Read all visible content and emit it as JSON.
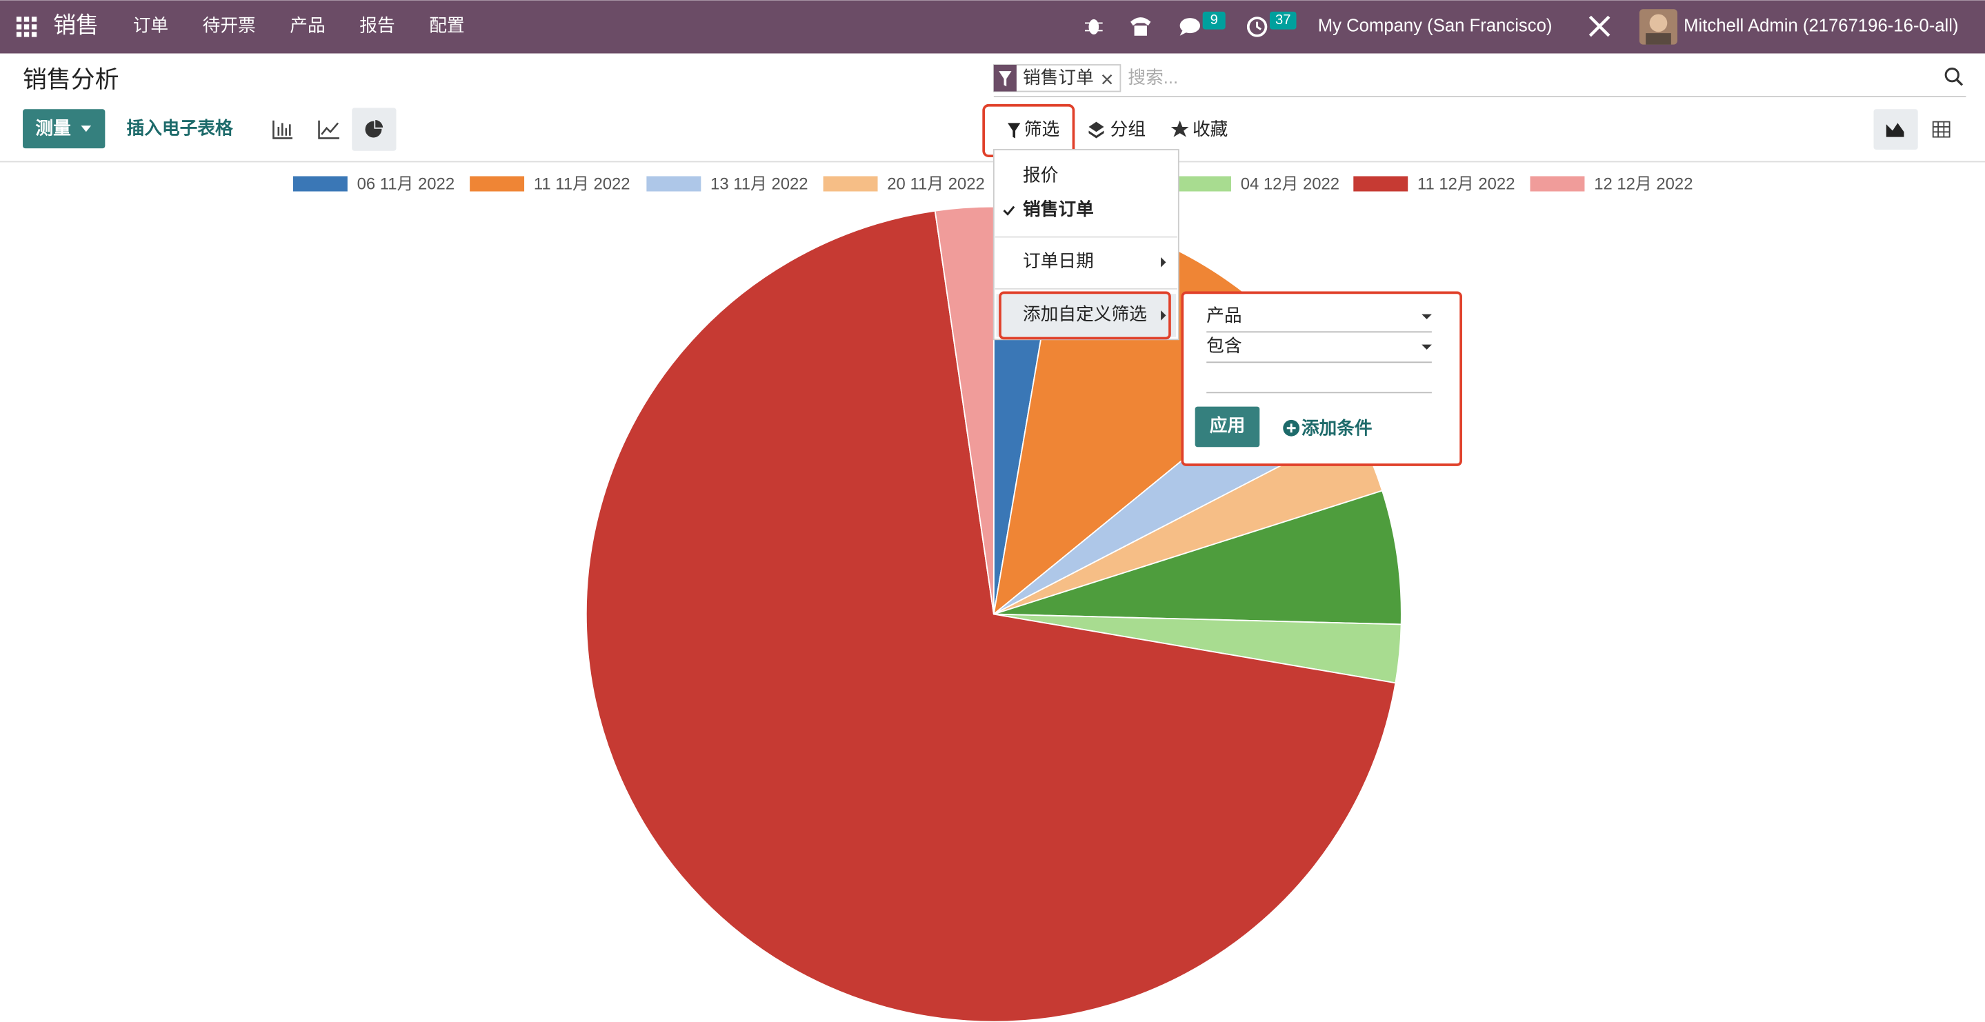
{
  "navbar": {
    "app": "销售",
    "menu": [
      "订单",
      "待开票",
      "产品",
      "报告",
      "配置"
    ],
    "badges": [
      9,
      37
    ],
    "company": "My Company (San Francisco)",
    "user": "Mitchell Admin (21767196-16-0-all)"
  },
  "control_panel": {
    "title": "销售分析",
    "facet": "销售订单",
    "search_placeholder": "搜索...",
    "measure": "测量",
    "insert_spreadsheet": "插入电子表格",
    "filter": "筛选",
    "group_by": "分组",
    "favorites": "收藏"
  },
  "filter_menu": {
    "items": [
      "报价",
      "销售订单",
      "订单日期",
      "添加自定义筛选"
    ]
  },
  "custom_filter": {
    "field": "产品",
    "operator": "包含",
    "apply": "应用",
    "add_condition": "添加条件"
  },
  "chart_data": {
    "type": "pie",
    "categories": [
      "06 11月 2022",
      "11 11月 2022",
      "13 11月 2022",
      "20 11月 2022",
      null,
      "04 12月 2022",
      "11 12月 2022",
      "12 12月 2022"
    ],
    "values": [
      2.7,
      11.4,
      3.3,
      2.7,
      5.3,
      2.3,
      70.0,
      2.3
    ],
    "colors": [
      "#3a77b6",
      "#ef8535",
      "#aec7e8",
      "#f6be86",
      "#4e9d3d",
      "#a8dc90",
      "#c63a33",
      "#f09c9a"
    ],
    "legend": "top"
  }
}
